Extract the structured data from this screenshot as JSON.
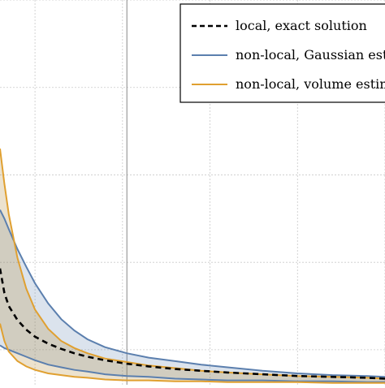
{
  "chart_data": {
    "type": "line",
    "title": "",
    "xlabel": "",
    "ylabel": "",
    "grid": true,
    "legend_position": "top-right",
    "xlim": [
      0,
      4.4
    ],
    "ylim": [
      0,
      4.4
    ],
    "xticks": [
      0.4,
      1.4,
      2.4,
      3.4,
      4.4
    ],
    "yticks": [
      0.4,
      1.4,
      2.4,
      3.4,
      4.4
    ],
    "vertical_reference_line": 1.45,
    "x": [
      0.0,
      0.05,
      0.1,
      0.2,
      0.3,
      0.4,
      0.55,
      0.7,
      0.85,
      1.0,
      1.2,
      1.45,
      1.7,
      2.0,
      2.3,
      2.6,
      3.0,
      3.4,
      3.8,
      4.2,
      4.4
    ],
    "series": [
      {
        "name": "local, exact solution",
        "color": "#000000",
        "style": "dashed",
        "values": [
          1.33,
          1.05,
          0.9,
          0.74,
          0.63,
          0.55,
          0.47,
          0.41,
          0.36,
          0.32,
          0.28,
          0.24,
          0.21,
          0.18,
          0.16,
          0.14,
          0.12,
          0.1,
          0.09,
          0.08,
          0.07
        ]
      },
      {
        "name": "non-local, Gaussian estimate",
        "color": "#5B7FAE",
        "style": "band",
        "upper": [
          2.0,
          1.9,
          1.78,
          1.55,
          1.35,
          1.16,
          0.93,
          0.75,
          0.62,
          0.52,
          0.43,
          0.36,
          0.31,
          0.27,
          0.23,
          0.2,
          0.16,
          0.13,
          0.11,
          0.1,
          0.09
        ],
        "lower": [
          0.45,
          0.42,
          0.4,
          0.36,
          0.32,
          0.28,
          0.23,
          0.2,
          0.17,
          0.15,
          0.12,
          0.1,
          0.09,
          0.07,
          0.06,
          0.05,
          0.05,
          0.04,
          0.04,
          0.03,
          0.03
        ]
      },
      {
        "name": "non-local, volume estimate",
        "color": "#E0A030",
        "style": "band",
        "upper": [
          2.7,
          2.3,
          1.95,
          1.45,
          1.1,
          0.86,
          0.64,
          0.5,
          0.42,
          0.36,
          0.3,
          0.26,
          0.22,
          0.19,
          0.16,
          0.14,
          0.12,
          0.1,
          0.09,
          0.08,
          0.07
        ],
        "lower": [
          0.7,
          0.5,
          0.38,
          0.27,
          0.21,
          0.17,
          0.13,
          0.11,
          0.09,
          0.08,
          0.06,
          0.05,
          0.05,
          0.04,
          0.04,
          0.03,
          0.03,
          0.03,
          0.02,
          0.02,
          0.02
        ]
      }
    ]
  }
}
